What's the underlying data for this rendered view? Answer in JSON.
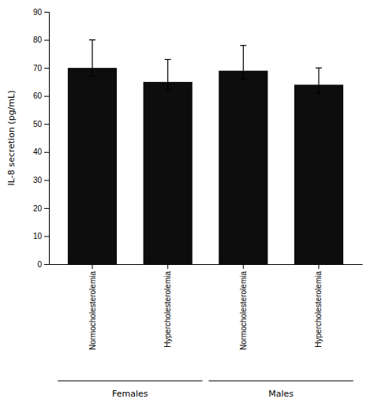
{
  "chart_data": {
    "type": "bar",
    "ylabel": "IL-8 secretion (pg/mL)",
    "categories": [
      "Normocholesterolemia",
      "Hypercholesterolemia",
      "Normocholesterolemia",
      "Hypercholesterolemia"
    ],
    "category_groups": [
      "Females",
      "Females",
      "Males",
      "Males"
    ],
    "values": [
      70,
      65,
      69,
      64
    ],
    "error_upper": [
      10,
      8,
      9,
      6
    ],
    "error_lower": [
      3,
      3,
      3,
      3
    ],
    "color": "#0d0d0d",
    "ylim": [
      0,
      90
    ],
    "yticks": [
      0,
      10,
      20,
      30,
      40,
      50,
      60,
      70,
      80,
      90
    ],
    "grid": false
  }
}
